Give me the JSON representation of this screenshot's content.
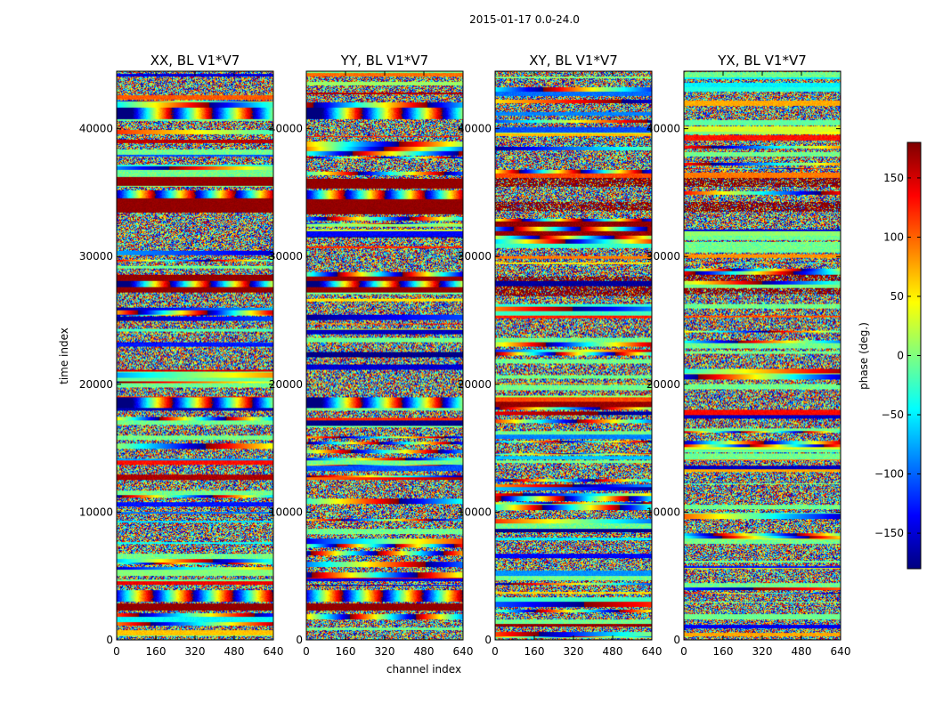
{
  "chart_data": {
    "type": "heatmap",
    "suptitle": "2015-01-17 0.0-24.0",
    "xlabel": "channel index",
    "ylabel": "time index",
    "xlim": [
      0,
      640
    ],
    "ylim": [
      0,
      44500
    ],
    "x_ticks": [
      "0",
      "160",
      "320",
      "480",
      "640"
    ],
    "y_ticks": [
      "0",
      "10000",
      "20000",
      "30000",
      "40000"
    ],
    "panels": [
      {
        "title": "XX, BL V1*V7",
        "structure": 1.0
      },
      {
        "title": "YY, BL V1*V7",
        "structure": 1.0
      },
      {
        "title": "XY, BL V1*V7",
        "structure": 0.35
      },
      {
        "title": "YX, BL V1*V7",
        "structure": 0.35
      }
    ],
    "features": [
      {
        "time": 41200,
        "channel": 230,
        "kind": "fringe"
      },
      {
        "time": 34800,
        "channel": 160,
        "kind": "fringe"
      },
      {
        "time": 27800,
        "channel": 220,
        "kind": "fringe"
      },
      {
        "time": 18600,
        "channel": 230,
        "kind": "fringe"
      },
      {
        "time": 3500,
        "channel": 150,
        "kind": "fringe"
      }
    ],
    "saturated_time_ranges": [
      [
        33600,
        34600
      ],
      [
        35700,
        36300
      ],
      [
        28200,
        28700
      ],
      [
        27300,
        27700
      ],
      [
        2600,
        2900
      ]
    ],
    "colorbar": {
      "label": "phase (deg.)",
      "range": [
        -180,
        180
      ],
      "ticks": [
        "−150",
        "−100",
        "−50",
        "0",
        "50",
        "100",
        "150"
      ],
      "tick_values": [
        -150,
        -100,
        -50,
        0,
        50,
        100,
        150
      ],
      "colormap": "jet",
      "colors": [
        "#00007f",
        "#0000ff",
        "#007fff",
        "#00ffff",
        "#7fff7f",
        "#ffff00",
        "#ff7f00",
        "#ff0000",
        "#7f0000"
      ]
    }
  }
}
